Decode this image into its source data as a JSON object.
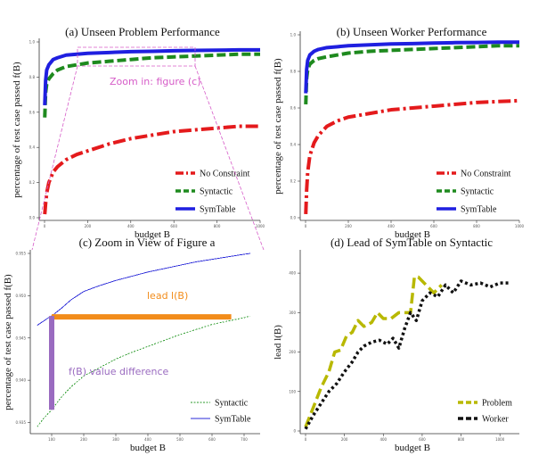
{
  "chart_data": [
    {
      "id": "a",
      "type": "line",
      "title": "(a) Unseen Problem Performance",
      "xlabel": "budget B",
      "ylabel": "percentage of test case passed f(B)",
      "xlim": [
        0,
        1000
      ],
      "ylim": [
        0,
        1
      ],
      "xticks": [
        "0",
        "200",
        "400",
        "600",
        "800",
        "1000"
      ],
      "yticks": [
        "0.0",
        "0.2",
        "0.4",
        "0.6",
        "0.8",
        "1.0"
      ],
      "legend": "bottom-right",
      "annotation": "Zoom in: figure (c)",
      "series": [
        {
          "name": "No Constraint",
          "color": "#e41a1c",
          "dash": "14,4,3,4",
          "x": [
            1,
            5,
            10,
            20,
            40,
            60,
            100,
            150,
            200,
            300,
            400,
            500,
            600,
            700,
            800,
            900,
            1000
          ],
          "y": [
            0.02,
            0.08,
            0.14,
            0.2,
            0.26,
            0.29,
            0.33,
            0.36,
            0.38,
            0.42,
            0.45,
            0.47,
            0.49,
            0.5,
            0.51,
            0.52,
            0.52
          ]
        },
        {
          "name": "Syntactic",
          "color": "#1e8a1e",
          "dash": "10,4",
          "x": [
            1,
            5,
            10,
            20,
            40,
            60,
            100,
            150,
            200,
            300,
            400,
            500,
            600,
            700,
            800,
            900,
            1000
          ],
          "y": [
            0.57,
            0.71,
            0.76,
            0.79,
            0.82,
            0.84,
            0.86,
            0.87,
            0.88,
            0.89,
            0.9,
            0.91,
            0.915,
            0.92,
            0.925,
            0.93,
            0.93
          ]
        },
        {
          "name": "SymTable",
          "color": "#1f1fe0",
          "dash": "",
          "x": [
            1,
            5,
            10,
            20,
            40,
            60,
            100,
            150,
            200,
            300,
            400,
            500,
            600,
            700,
            800,
            900,
            1000
          ],
          "y": [
            0.64,
            0.78,
            0.84,
            0.87,
            0.9,
            0.91,
            0.925,
            0.93,
            0.935,
            0.94,
            0.945,
            0.947,
            0.95,
            0.952,
            0.953,
            0.955,
            0.955
          ]
        }
      ]
    },
    {
      "id": "b",
      "type": "line",
      "title": "(b) Unseen Worker Performance",
      "xlabel": "budget B",
      "ylabel": "percentage of test case passed f(B)",
      "xlim": [
        0,
        1000
      ],
      "ylim": [
        0,
        1
      ],
      "xticks": [
        "0",
        "200",
        "400",
        "600",
        "800",
        "1000"
      ],
      "yticks": [
        "0.0",
        "0.2",
        "0.4",
        "0.6",
        "0.8",
        "1.0"
      ],
      "legend": "bottom-right",
      "series": [
        {
          "name": "No Constraint",
          "color": "#e41a1c",
          "dash": "14,4,3,4",
          "x": [
            1,
            5,
            10,
            20,
            40,
            60,
            100,
            150,
            200,
            300,
            400,
            500,
            600,
            700,
            800,
            900,
            1000
          ],
          "y": [
            0.02,
            0.15,
            0.25,
            0.34,
            0.41,
            0.45,
            0.5,
            0.53,
            0.55,
            0.57,
            0.59,
            0.6,
            0.61,
            0.62,
            0.63,
            0.635,
            0.64
          ]
        },
        {
          "name": "Syntactic",
          "color": "#1e8a1e",
          "dash": "10,4",
          "x": [
            1,
            5,
            10,
            20,
            40,
            60,
            100,
            150,
            200,
            300,
            400,
            500,
            600,
            700,
            800,
            900,
            1000
          ],
          "y": [
            0.62,
            0.76,
            0.81,
            0.84,
            0.86,
            0.87,
            0.88,
            0.89,
            0.9,
            0.91,
            0.915,
            0.92,
            0.925,
            0.93,
            0.935,
            0.94,
            0.94
          ]
        },
        {
          "name": "SymTable",
          "color": "#1f1fe0",
          "dash": "",
          "x": [
            1,
            5,
            10,
            20,
            40,
            60,
            100,
            150,
            200,
            300,
            400,
            500,
            600,
            700,
            800,
            900,
            1000
          ],
          "y": [
            0.68,
            0.81,
            0.86,
            0.89,
            0.91,
            0.92,
            0.93,
            0.935,
            0.94,
            0.945,
            0.95,
            0.952,
            0.955,
            0.957,
            0.958,
            0.96,
            0.96
          ]
        }
      ]
    },
    {
      "id": "c",
      "type": "line",
      "title": "(c) Zoom in View of Figure a",
      "xlabel": "budget B",
      "ylabel": "percentage of test case passed f(B)",
      "xlim": [
        50,
        750
      ],
      "ylim": [
        0.934,
        0.955
      ],
      "xticks": [
        "100",
        "200",
        "300",
        "400",
        "500",
        "600",
        "700"
      ],
      "yticks": [
        "0.935",
        "0.940",
        "0.945",
        "0.950",
        "0.955"
      ],
      "legend": "bottom-right",
      "lead_label": "lead l(B)",
      "diff_label": "f(B) value difference",
      "lead_value": 560,
      "lead_at_budget": 100,
      "lead_level": 0.9475,
      "series": [
        {
          "name": "Syntactic",
          "color": "#2a9a2a",
          "dash": "2,1.5",
          "x": [
            55,
            75,
            100,
            130,
            160,
            200,
            250,
            300,
            350,
            400,
            450,
            500,
            550,
            600,
            650,
            700,
            720
          ],
          "y": [
            0.9345,
            0.9355,
            0.9365,
            0.938,
            0.9392,
            0.9405,
            0.9415,
            0.9425,
            0.9433,
            0.944,
            0.9447,
            0.9454,
            0.946,
            0.9466,
            0.947,
            0.9474,
            0.9476
          ]
        },
        {
          "name": "SymTable",
          "color": "#2a2ad8",
          "dash": "",
          "x": [
            55,
            75,
            90,
            100,
            130,
            160,
            200,
            250,
            300,
            350,
            400,
            450,
            500,
            550,
            600,
            650,
            700,
            720
          ],
          "y": [
            0.9465,
            0.947,
            0.9474,
            0.9476,
            0.9485,
            0.9495,
            0.9505,
            0.9512,
            0.9518,
            0.9523,
            0.9528,
            0.9532,
            0.9536,
            0.954,
            0.9543,
            0.9546,
            0.9549,
            0.955
          ]
        }
      ]
    },
    {
      "id": "d",
      "type": "line",
      "title": "(d) Lead of SymTable on Syntactic",
      "xlabel": "budget B",
      "ylabel": "lead l(B)",
      "xlim": [
        0,
        1100
      ],
      "ylim": [
        0,
        450
      ],
      "xticks": [
        "0",
        "200",
        "400",
        "600",
        "800",
        "1000"
      ],
      "yticks": [
        "0",
        "100",
        "200",
        "300",
        "400"
      ],
      "legend": "bottom-right",
      "series": [
        {
          "name": "Problem",
          "color": "#b8b800",
          "dash": "12,5",
          "x": [
            0,
            40,
            80,
            120,
            150,
            180,
            210,
            240,
            270,
            300,
            340,
            370,
            400,
            440,
            480,
            510,
            540,
            560,
            580,
            620,
            660,
            700
          ],
          "y": [
            10,
            60,
            110,
            150,
            200,
            205,
            240,
            250,
            280,
            265,
            275,
            300,
            285,
            285,
            300,
            300,
            300,
            390,
            390,
            370,
            350,
            370
          ]
        },
        {
          "name": "Worker",
          "color": "#111111",
          "dash": "3,3",
          "x": [
            0,
            40,
            80,
            120,
            160,
            200,
            240,
            270,
            300,
            340,
            380,
            420,
            450,
            480,
            510,
            540,
            570,
            600,
            640,
            680,
            720,
            760,
            800,
            850,
            900,
            950,
            1000,
            1050
          ],
          "y": [
            5,
            40,
            70,
            100,
            120,
            150,
            175,
            200,
            215,
            225,
            230,
            220,
            235,
            210,
            260,
            300,
            280,
            330,
            350,
            340,
            370,
            350,
            380,
            370,
            375,
            365,
            375,
            375
          ]
        }
      ]
    }
  ]
}
